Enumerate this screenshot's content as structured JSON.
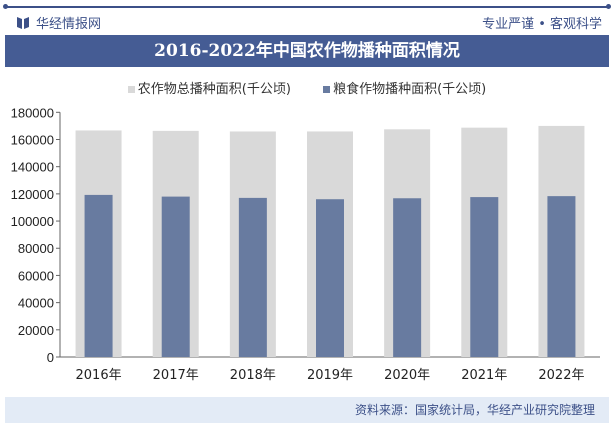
{
  "header": {
    "brand": "华经情报网",
    "slogan": "专业严谨 • 客观科学"
  },
  "footer": {
    "source": "资料来源：国家统计局，华经产业研究院整理"
  },
  "colors": {
    "total": "#d9d9d9",
    "grain": "#687ba0",
    "banner": "#455c94"
  },
  "chart_data": {
    "type": "bar",
    "title": "2016-2022年中国农作物播种面积情况",
    "categories": [
      "2016年",
      "2017年",
      "2018年",
      "2019年",
      "2020年",
      "2021年",
      "2022年"
    ],
    "series": [
      {
        "name": "农作物总播种面积(千公顷)",
        "values": [
          166650,
          166332,
          165902,
          165931,
          167487,
          168695,
          169991
        ]
      },
      {
        "name": "粮食作物播种面积(千公顷)",
        "values": [
          119230,
          117989,
          117038,
          116064,
          116768,
          117631,
          118332
        ]
      }
    ],
    "ylim": [
      0,
      180000
    ],
    "yticks": [
      0,
      20000,
      40000,
      60000,
      80000,
      100000,
      120000,
      140000,
      160000,
      180000
    ],
    "grid": false,
    "legend": "top"
  }
}
